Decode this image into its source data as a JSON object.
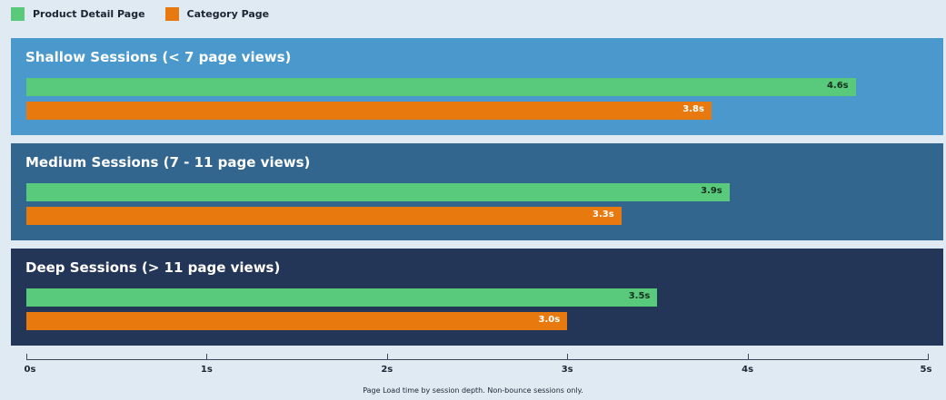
{
  "chart_data": {
    "type": "bar",
    "orientation": "horizontal",
    "categories": [
      "Shallow Sessions (< 7 page views)",
      "Medium Sessions (7 - 11 page views)",
      "Deep Sessions (> 11 page views)"
    ],
    "series": [
      {
        "name": "Product Detail Page",
        "color": "#59c97c",
        "values": [
          4.6,
          3.9,
          3.5
        ],
        "labels": [
          "4.6s",
          "3.9s",
          "3.5s"
        ]
      },
      {
        "name": "Category Page",
        "color": "#e8790f",
        "values": [
          3.8,
          3.3,
          3.0
        ],
        "labels": [
          "3.8s",
          "3.3s",
          "3.0s"
        ]
      }
    ],
    "xlim": [
      0,
      5
    ],
    "ticks": [
      0,
      1,
      2,
      3,
      4,
      5
    ],
    "tick_labels": [
      "0s",
      "1s",
      "2s",
      "3s",
      "4s",
      "5s"
    ],
    "legend_position": "top-left",
    "caption": "Page Load time by session depth. Non-bounce sessions only.",
    "group_colors": [
      "#4b99cc",
      "#33668f",
      "#233658"
    ]
  }
}
